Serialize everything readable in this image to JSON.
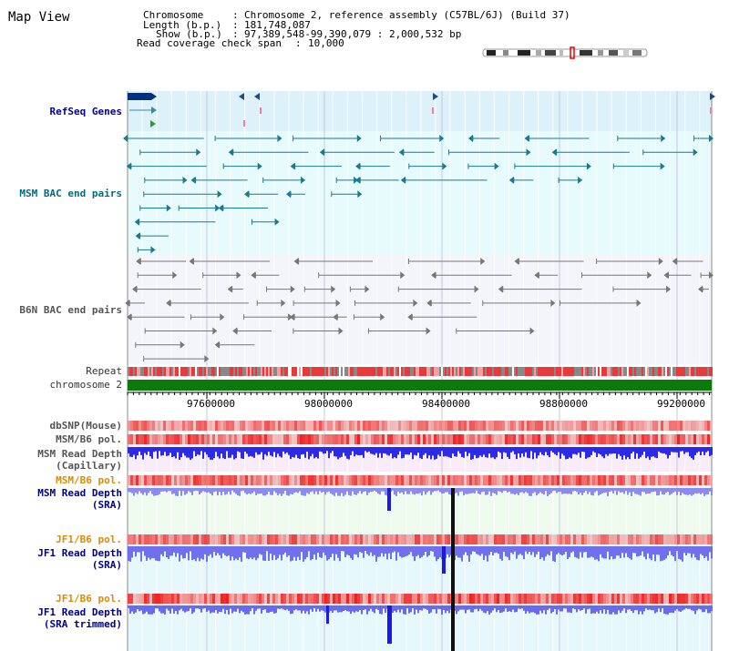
{
  "title": "Map View",
  "header": {
    "chromosome_label": "Chromosome",
    "chromosome_value": "Chromosome 2, reference assembly (C57BL/6J) (Build 37)",
    "length_label": "Length (b.p.)",
    "length_value": "181,748,087",
    "show_label": "Show (b.p.)",
    "show_value": "97,389,548-99,390,079 : 2,000,532 bp",
    "coverage_label": "Read coverage check span",
    "coverage_value": "10,000"
  },
  "tracks": {
    "refseq": "RefSeq Genes",
    "msm_bac": "MSM BAC end pairs",
    "b6n_bac": "B6N BAC end pairs",
    "repeat": "Repeat",
    "chromosome": "chromosome 2",
    "dbsnp": "dbSNP(Mouse)",
    "msm_b6_pol_1": "MSM/B6 pol.",
    "msm_read_depth_cap_1": "MSM Read Depth",
    "msm_read_depth_cap_2": "(Capillary)",
    "msm_b6_pol_2": "MSM/B6 pol.",
    "msm_read_depth_sra_1": "MSM Read Depth",
    "msm_read_depth_sra_2": "(SRA)",
    "jf1_b6_pol_1": "JF1/B6 pol.",
    "jf1_read_depth_sra_1": "JF1 Read Depth",
    "jf1_read_depth_sra_2": "(SRA)",
    "jf1_b6_pol_2": "JF1/B6 pol.",
    "jf1_read_depth_trim_1": "JF1 Read Depth",
    "jf1_read_depth_trim_2": "(SRA trimmed)"
  },
  "axis": {
    "ticks": [
      "97600000",
      "98000000",
      "98400000",
      "98800000",
      "99200000"
    ]
  },
  "colors": {
    "refseq_bg": "#ddf1fb",
    "msm_bg": "#e8fbfc",
    "b6n_bg": "#f4f4fb",
    "chrom": "#0a7a0a",
    "depth_blue": "#1a1ae6",
    "depth_light": "#7f7ff0",
    "pol_red": "#f03030",
    "pol_pink": "#f8c0c0"
  }
}
